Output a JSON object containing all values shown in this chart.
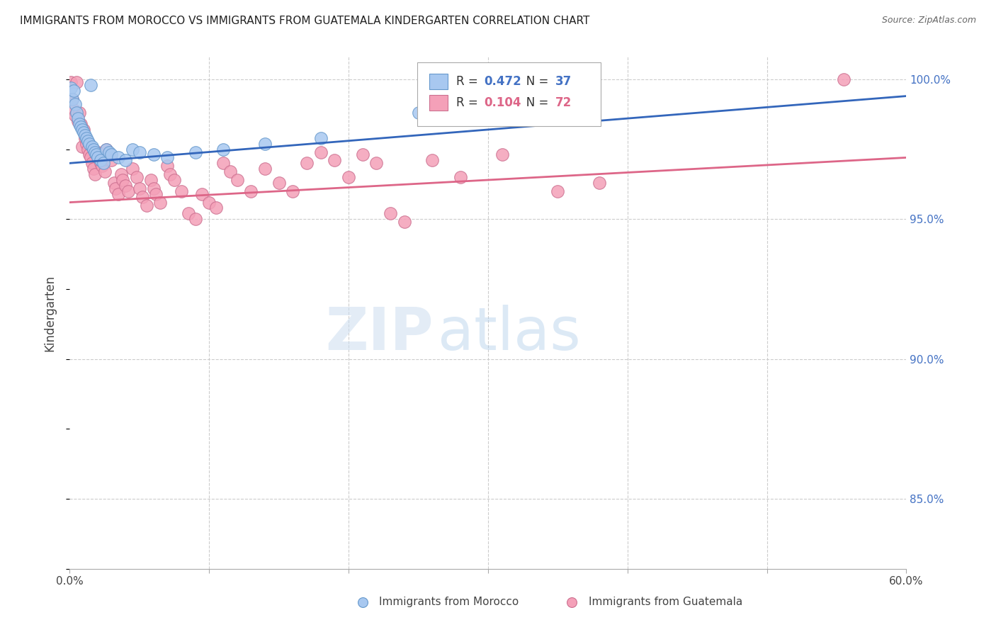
{
  "title": "IMMIGRANTS FROM MOROCCO VS IMMIGRANTS FROM GUATEMALA KINDERGARTEN CORRELATION CHART",
  "source": "Source: ZipAtlas.com",
  "ylabel": "Kindergarten",
  "xlim": [
    0.0,
    0.6
  ],
  "ylim": [
    0.825,
    1.008
  ],
  "yticks": [
    0.85,
    0.9,
    0.95,
    1.0
  ],
  "ytick_labels_right": [
    "85.0%",
    "90.0%",
    "95.0%",
    "100.0%"
  ],
  "xtick_vals": [
    0.0,
    0.1,
    0.2,
    0.3,
    0.4,
    0.5,
    0.6
  ],
  "xtick_labels": [
    "0.0%",
    "",
    "",
    "",
    "",
    "",
    "60.0%"
  ],
  "morocco_color": "#a8c8f0",
  "morocco_edge": "#6699cc",
  "morocco_line_color": "#3366bb",
  "guatemala_color": "#f4a0b8",
  "guatemala_edge": "#cc7090",
  "guatemala_line_color": "#dd6688",
  "legend_r1": "0.472",
  "legend_n1": "37",
  "legend_r2": "0.104",
  "legend_n2": "72",
  "legend_color1": "#4472c4",
  "legend_color2": "#dd6688",
  "morocco_points": [
    [
      0.001,
      0.997
    ],
    [
      0.002,
      0.993
    ],
    [
      0.003,
      0.996
    ],
    [
      0.004,
      0.991
    ],
    [
      0.005,
      0.988
    ],
    [
      0.006,
      0.986
    ],
    [
      0.007,
      0.984
    ],
    [
      0.008,
      0.983
    ],
    [
      0.009,
      0.982
    ],
    [
      0.01,
      0.981
    ],
    [
      0.011,
      0.98
    ],
    [
      0.012,
      0.979
    ],
    [
      0.013,
      0.978
    ],
    [
      0.014,
      0.977
    ],
    [
      0.015,
      0.998
    ],
    [
      0.016,
      0.976
    ],
    [
      0.017,
      0.975
    ],
    [
      0.018,
      0.974
    ],
    [
      0.019,
      0.973
    ],
    [
      0.02,
      0.972
    ],
    [
      0.022,
      0.971
    ],
    [
      0.024,
      0.97
    ],
    [
      0.026,
      0.975
    ],
    [
      0.028,
      0.974
    ],
    [
      0.03,
      0.973
    ],
    [
      0.035,
      0.972
    ],
    [
      0.04,
      0.971
    ],
    [
      0.045,
      0.975
    ],
    [
      0.05,
      0.974
    ],
    [
      0.06,
      0.973
    ],
    [
      0.07,
      0.972
    ],
    [
      0.09,
      0.974
    ],
    [
      0.11,
      0.975
    ],
    [
      0.14,
      0.977
    ],
    [
      0.18,
      0.979
    ],
    [
      0.25,
      0.988
    ],
    [
      0.295,
      0.992
    ]
  ],
  "guatemala_points": [
    [
      0.001,
      0.999
    ],
    [
      0.002,
      0.993
    ],
    [
      0.003,
      0.989
    ],
    [
      0.004,
      0.987
    ],
    [
      0.005,
      0.999
    ],
    [
      0.006,
      0.985
    ],
    [
      0.007,
      0.988
    ],
    [
      0.008,
      0.984
    ],
    [
      0.009,
      0.976
    ],
    [
      0.01,
      0.982
    ],
    [
      0.011,
      0.979
    ],
    [
      0.012,
      0.977
    ],
    [
      0.013,
      0.975
    ],
    [
      0.014,
      0.973
    ],
    [
      0.015,
      0.972
    ],
    [
      0.016,
      0.97
    ],
    [
      0.017,
      0.968
    ],
    [
      0.018,
      0.966
    ],
    [
      0.02,
      0.974
    ],
    [
      0.021,
      0.972
    ],
    [
      0.022,
      0.97
    ],
    [
      0.023,
      0.969
    ],
    [
      0.025,
      0.967
    ],
    [
      0.026,
      0.975
    ],
    [
      0.028,
      0.973
    ],
    [
      0.03,
      0.971
    ],
    [
      0.032,
      0.963
    ],
    [
      0.033,
      0.961
    ],
    [
      0.035,
      0.959
    ],
    [
      0.037,
      0.966
    ],
    [
      0.038,
      0.964
    ],
    [
      0.04,
      0.962
    ],
    [
      0.042,
      0.96
    ],
    [
      0.045,
      0.968
    ],
    [
      0.048,
      0.965
    ],
    [
      0.05,
      0.961
    ],
    [
      0.052,
      0.958
    ],
    [
      0.055,
      0.955
    ],
    [
      0.058,
      0.964
    ],
    [
      0.06,
      0.961
    ],
    [
      0.062,
      0.959
    ],
    [
      0.065,
      0.956
    ],
    [
      0.07,
      0.969
    ],
    [
      0.072,
      0.966
    ],
    [
      0.075,
      0.964
    ],
    [
      0.08,
      0.96
    ],
    [
      0.085,
      0.952
    ],
    [
      0.09,
      0.95
    ],
    [
      0.095,
      0.959
    ],
    [
      0.1,
      0.956
    ],
    [
      0.105,
      0.954
    ],
    [
      0.11,
      0.97
    ],
    [
      0.115,
      0.967
    ],
    [
      0.12,
      0.964
    ],
    [
      0.13,
      0.96
    ],
    [
      0.14,
      0.968
    ],
    [
      0.15,
      0.963
    ],
    [
      0.16,
      0.96
    ],
    [
      0.17,
      0.97
    ],
    [
      0.18,
      0.974
    ],
    [
      0.19,
      0.971
    ],
    [
      0.2,
      0.965
    ],
    [
      0.21,
      0.973
    ],
    [
      0.22,
      0.97
    ],
    [
      0.23,
      0.952
    ],
    [
      0.24,
      0.949
    ],
    [
      0.26,
      0.971
    ],
    [
      0.28,
      0.965
    ],
    [
      0.31,
      0.973
    ],
    [
      0.35,
      0.96
    ],
    [
      0.38,
      0.963
    ],
    [
      0.555,
      1.0
    ]
  ],
  "morocco_line": [
    [
      0.0,
      0.97
    ],
    [
      0.6,
      0.994
    ]
  ],
  "guatemala_line": [
    [
      0.0,
      0.956
    ],
    [
      0.6,
      0.972
    ]
  ]
}
